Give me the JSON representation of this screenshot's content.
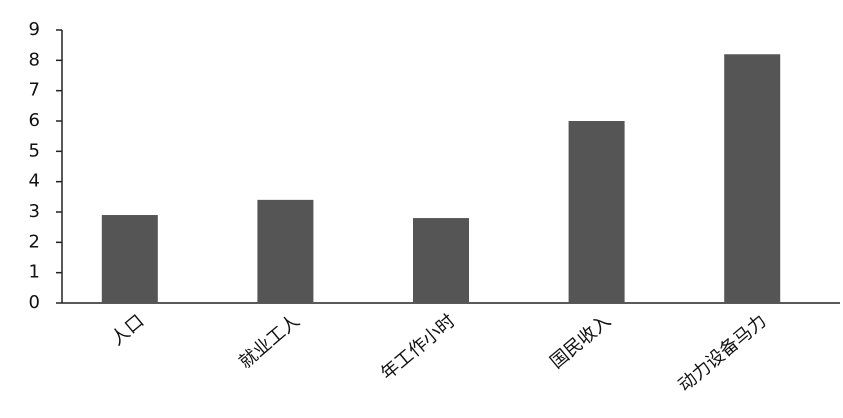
{
  "chart_data": {
    "type": "bar",
    "categories": [
      "人口",
      "就业工人",
      "年工作小时",
      "国民收入",
      "动力设备马力"
    ],
    "values": [
      2.9,
      3.4,
      2.8,
      6.0,
      8.2
    ],
    "color": "#555555",
    "ylim": [
      0,
      9
    ],
    "yticks": [
      0,
      1,
      2,
      3,
      4,
      5,
      6,
      7,
      8,
      9
    ],
    "grid": false
  }
}
